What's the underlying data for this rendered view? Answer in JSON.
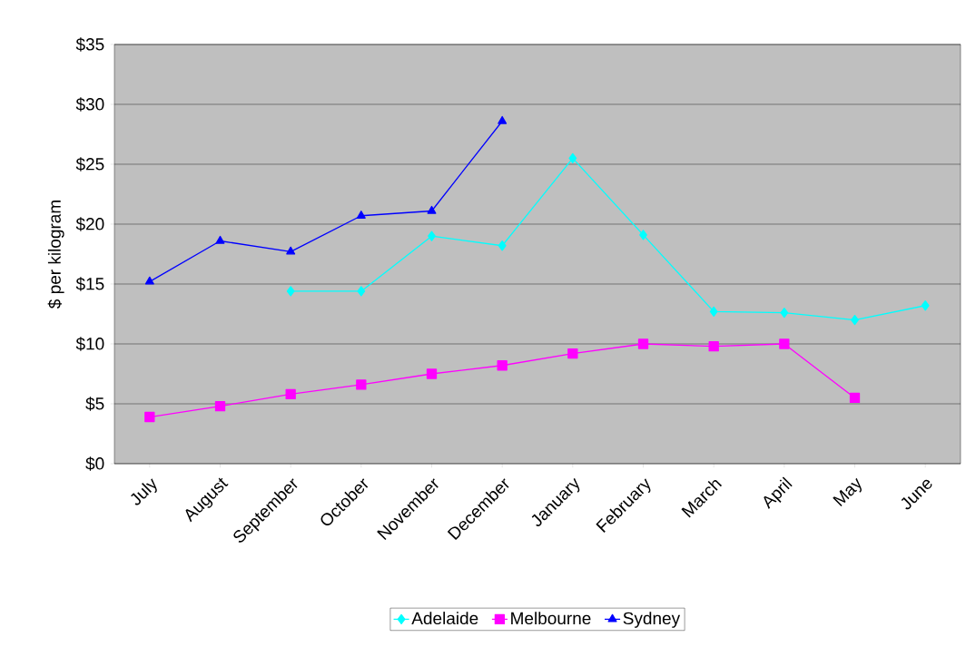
{
  "chart_data": {
    "type": "line",
    "ylabel": "$ per kilogram",
    "categories": [
      "July",
      "August",
      "September",
      "October",
      "November",
      "December",
      "January",
      "February",
      "March",
      "April",
      "May",
      "June"
    ],
    "series": [
      {
        "name": "Adelaide",
        "color": "#00ffff",
        "marker": "diamond",
        "line_style": "solid",
        "values": [
          null,
          null,
          14.4,
          14.4,
          19.0,
          18.2,
          25.5,
          19.1,
          12.7,
          12.6,
          12.0,
          13.2
        ]
      },
      {
        "name": "Melbourne",
        "color": "#ff00ff",
        "marker": "square",
        "line_style": "solid",
        "values": [
          3.9,
          4.8,
          5.8,
          6.6,
          7.5,
          8.2,
          9.2,
          10.0,
          9.8,
          10.0,
          5.5,
          null
        ]
      },
      {
        "name": "Sydney",
        "color": "#0000ff",
        "marker": "triangle",
        "line_style": "solid",
        "values": [
          15.2,
          18.6,
          17.7,
          20.7,
          21.1,
          28.6,
          null,
          null,
          null,
          null,
          null,
          null
        ]
      }
    ],
    "ylim": [
      0,
      35
    ],
    "yticks": [
      {
        "value": 0,
        "label": "$0"
      },
      {
        "value": 5,
        "label": "$5"
      },
      {
        "value": 10,
        "label": "$10"
      },
      {
        "value": 15,
        "label": "$15"
      },
      {
        "value": 20,
        "label": "$20"
      },
      {
        "value": 25,
        "label": "$25"
      },
      {
        "value": 30,
        "label": "$30"
      },
      {
        "value": 35,
        "label": "$35"
      }
    ],
    "grid": "y",
    "legend": "bottom"
  }
}
